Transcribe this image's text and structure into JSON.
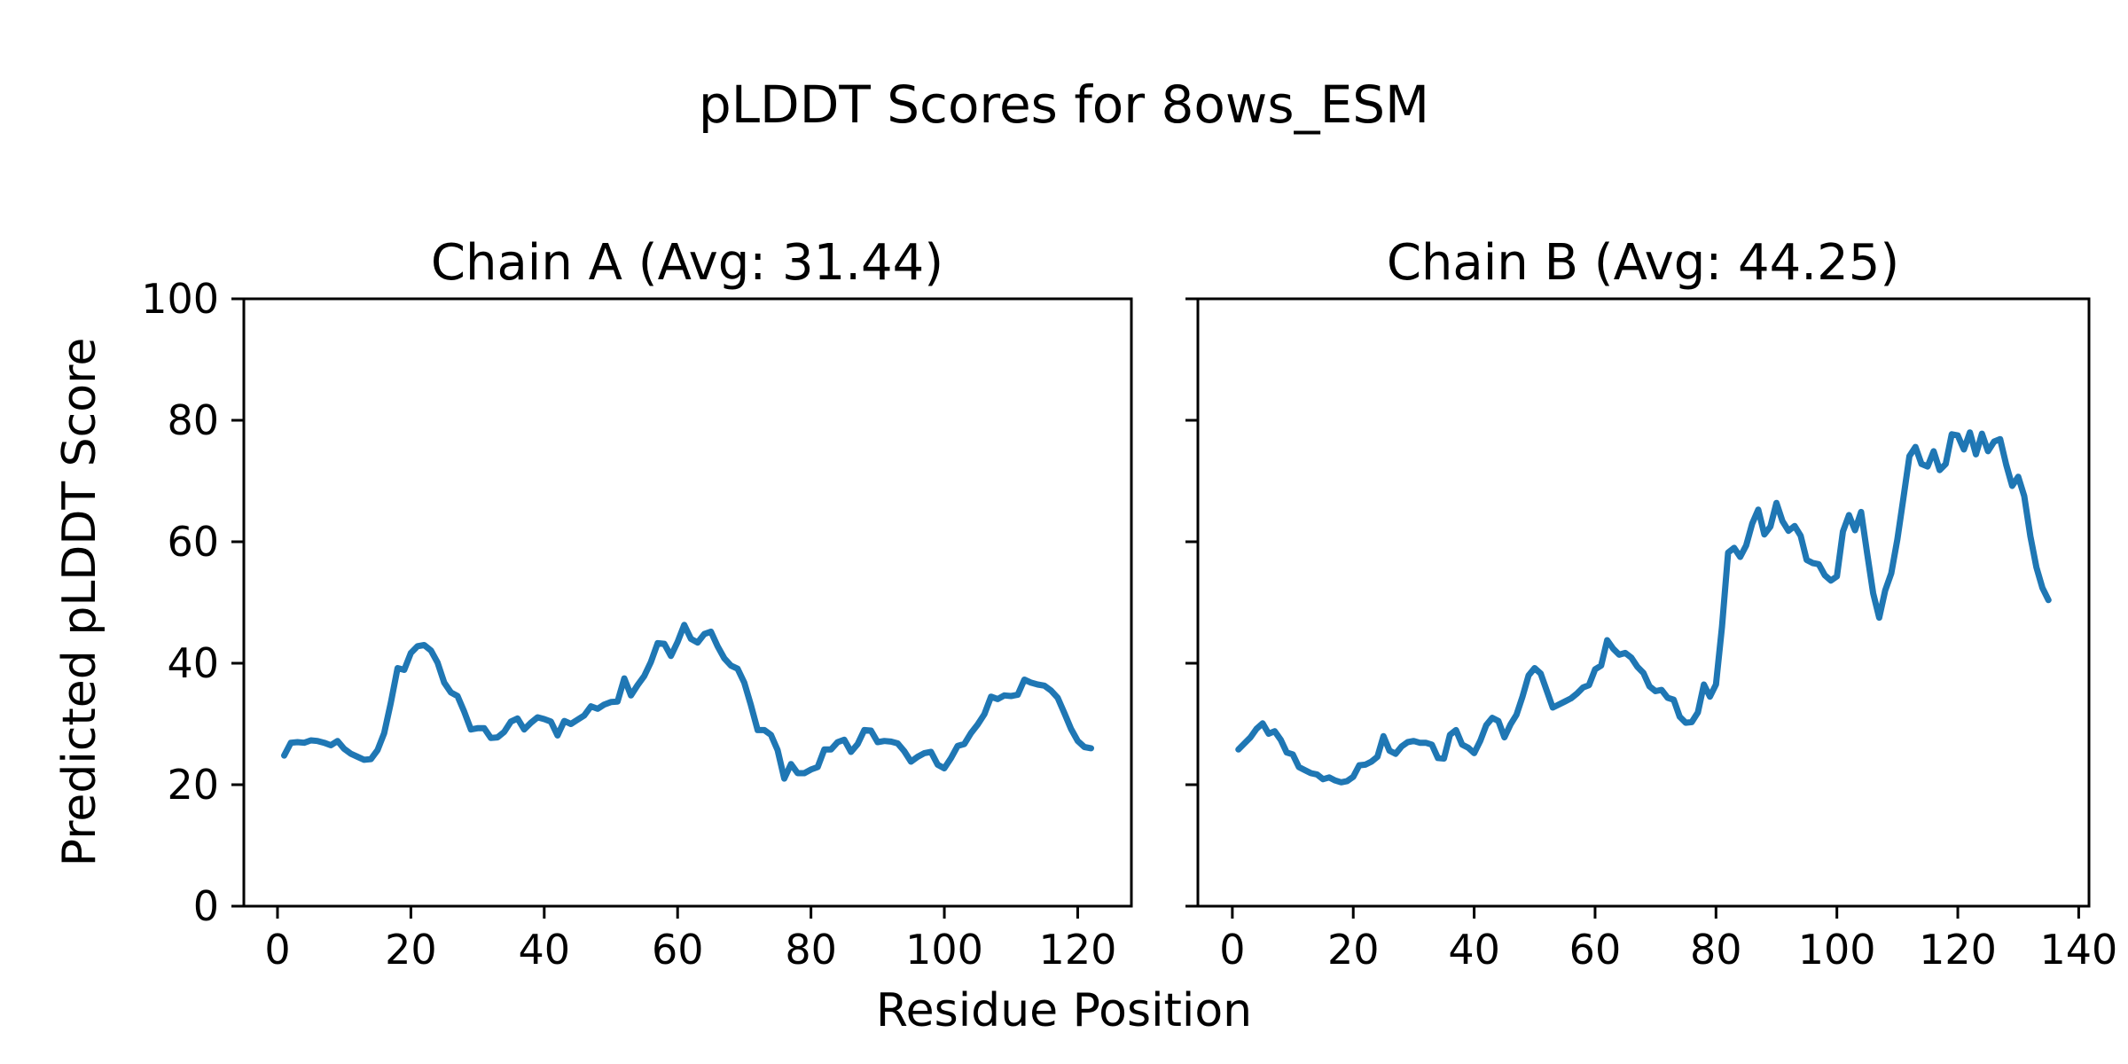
{
  "labels": {
    "suptitle": "pLDDT Scores for 8ows_ESM",
    "xlabel": "Residue Position",
    "ylabel": "Predicted pLDDT Score"
  },
  "colors": {
    "line": "#1f77b4",
    "text": "#000000",
    "background": "#ffffff"
  },
  "chart_data": [
    {
      "type": "line",
      "title": "Chain A (Avg: 31.44)",
      "avg_shown": "31.44",
      "xlabel": "Residue Position",
      "ylabel": "Predicted pLDDT Score",
      "x_start": 1,
      "x_step": 1,
      "xlim": [
        -5.05,
        128.05
      ],
      "ylim": [
        0,
        100
      ],
      "xticks": [
        0,
        20,
        40,
        60,
        80,
        100,
        120
      ],
      "yticks": [
        0,
        20,
        40,
        60,
        80,
        100
      ],
      "y_tick_labels_visible": true,
      "grid": false,
      "line_color": "#1f77b4",
      "values": [
        24.8,
        26.9,
        27.0,
        26.9,
        27.3,
        27.2,
        26.9,
        26.5,
        27.2,
        25.9,
        25.1,
        24.6,
        24.1,
        24.2,
        25.7,
        28.5,
        33.5,
        39.2,
        38.9,
        41.7,
        42.8,
        43.0,
        42.1,
        40.1,
        36.8,
        35.2,
        34.6,
        32.0,
        29.1,
        29.3,
        29.3,
        27.7,
        27.8,
        28.7,
        30.4,
        30.9,
        29.1,
        30.2,
        31.1,
        30.8,
        30.4,
        28.1,
        30.5,
        30.0,
        30.7,
        31.4,
        32.9,
        32.5,
        33.2,
        33.6,
        33.7,
        37.5,
        34.7,
        36.4,
        37.9,
        40.2,
        43.3,
        43.2,
        41.2,
        43.5,
        46.3,
        44.0,
        43.4,
        44.8,
        45.2,
        42.8,
        40.8,
        39.6,
        39.1,
        36.8,
        33.1,
        29.0,
        29.0,
        28.2,
        25.7,
        21.0,
        23.4,
        21.9,
        21.9,
        22.5,
        22.9,
        25.8,
        25.8,
        27.0,
        27.4,
        25.4,
        26.7,
        29.0,
        28.9,
        27.0,
        27.2,
        27.1,
        26.8,
        25.5,
        23.8,
        24.6,
        25.2,
        25.4,
        23.3,
        22.7,
        24.4,
        26.4,
        26.7,
        28.5,
        29.9,
        31.6,
        34.5,
        34.1,
        34.7,
        34.6,
        34.8,
        37.3,
        36.8,
        36.5,
        36.3,
        35.5,
        34.3,
        31.8,
        29.2,
        27.2,
        26.2,
        26.0
      ]
    },
    {
      "type": "line",
      "title": "Chain B (Avg: 44.25)",
      "avg_shown": "44.25",
      "xlabel": "Residue Position",
      "ylabel": "Predicted pLDDT Score",
      "x_start": 1,
      "x_step": 1,
      "xlim": [
        -5.7,
        141.7
      ],
      "ylim": [
        0,
        100
      ],
      "xticks": [
        0,
        20,
        40,
        60,
        80,
        100,
        120,
        140
      ],
      "yticks": [
        0,
        20,
        40,
        60,
        80,
        100
      ],
      "y_tick_labels_visible": false,
      "grid": false,
      "line_color": "#1f77b4",
      "values": [
        25.8,
        26.8,
        27.8,
        29.2,
        30.1,
        28.4,
        28.8,
        27.4,
        25.3,
        25.0,
        22.9,
        22.4,
        21.9,
        21.7,
        20.9,
        21.2,
        20.7,
        20.4,
        20.6,
        21.3,
        23.2,
        23.3,
        23.8,
        24.6,
        28.0,
        25.6,
        25.1,
        26.3,
        27.0,
        27.2,
        26.9,
        26.9,
        26.6,
        24.4,
        24.3,
        28.2,
        29.0,
        26.6,
        26.1,
        25.2,
        27.2,
        29.8,
        31.0,
        30.5,
        27.8,
        29.9,
        31.5,
        34.5,
        38.0,
        39.2,
        38.3,
        35.5,
        32.7,
        33.2,
        33.7,
        34.2,
        35.0,
        36.0,
        36.4,
        39.0,
        39.6,
        43.8,
        42.4,
        41.4,
        41.7,
        40.9,
        39.4,
        38.4,
        36.2,
        35.4,
        35.6,
        34.3,
        34.0,
        31.2,
        30.2,
        30.3,
        31.9,
        36.5,
        34.5,
        36.5,
        46.0,
        58.2,
        59.0,
        57.5,
        59.4,
        63.0,
        65.3,
        61.2,
        62.5,
        66.4,
        63.4,
        61.8,
        62.6,
        61.0,
        57.0,
        56.5,
        56.3,
        54.5,
        53.6,
        54.3,
        61.7,
        64.4,
        61.9,
        64.9,
        58.1,
        51.5,
        47.5,
        52.0,
        54.8,
        60.4,
        67.2,
        74.1,
        75.6,
        72.8,
        72.4,
        74.9,
        71.8,
        72.8,
        77.7,
        77.5,
        75.2,
        78.0,
        74.4,
        77.8,
        74.9,
        76.5,
        76.9,
        72.7,
        69.2,
        70.7,
        67.5,
        60.9,
        55.8,
        52.4,
        50.4
      ]
    }
  ]
}
